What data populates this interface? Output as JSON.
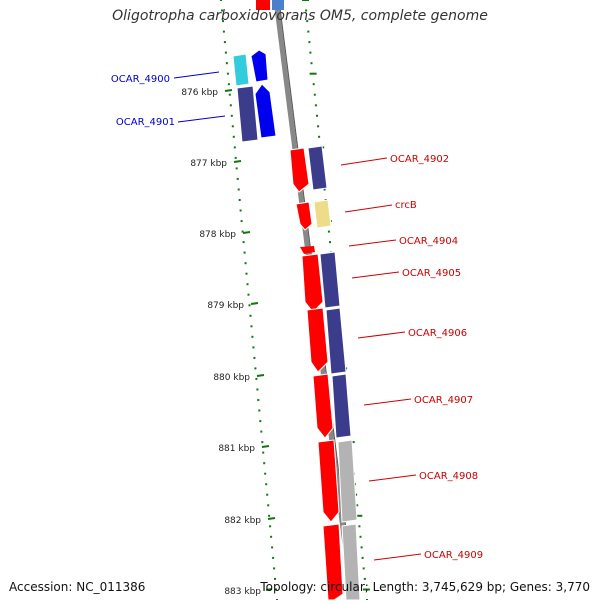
{
  "title": "Oligotropha carboxidovorans OM5, complete genome",
  "accession": "Accession: NC_011386",
  "topology": "Topology: circular; Length: 3,745,629 bp; Genes: 3,770",
  "kbp_ticks": [
    "876 kbp",
    "877 kbp",
    "878 kbp",
    "879 kbp",
    "880 kbp",
    "881 kbp",
    "882 kbp",
    "883 kbp"
  ],
  "gene_labels": [
    "OCAR_4900",
    "OCAR_4901",
    "OCAR_4902",
    "crcB",
    "OCAR_4904",
    "OCAR_4905",
    "OCAR_4906",
    "OCAR_4907",
    "OCAR_4908",
    "OCAR_4909"
  ],
  "colors": {
    "forward_strand_label": "#0000cc",
    "reverse_strand_label": "#cc0000",
    "red_gene": "#ff0000",
    "blue_gene": "#0000ee",
    "navy_gene": "#3c3c8c",
    "cyan_gene": "#33ccdd",
    "yellow_gene": "#eedd88",
    "gray_gene": "#b3b3b3",
    "backbone": "#888888",
    "gc_tick": "#117711"
  }
}
